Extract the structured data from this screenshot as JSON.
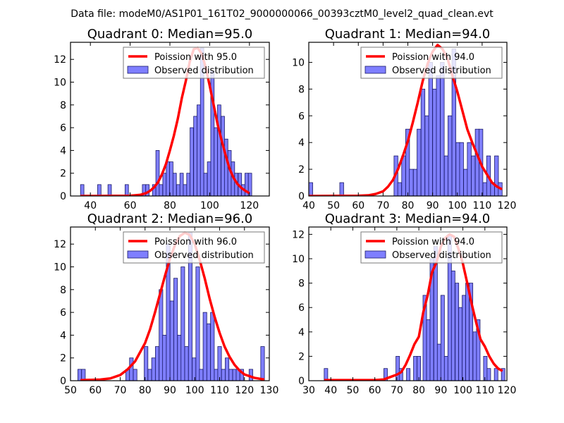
{
  "figure": {
    "suptitle": "Data file: modeM0/AS1P01_161T02_9000000066_00393cztM0_level2_quad_clean.evt"
  },
  "colors": {
    "bar_fill": "#7f7fff",
    "bar_edge": "#1a1a66",
    "poisson_line": "#ff0000",
    "legend_border": "#7a7a7a"
  },
  "chart_data": [
    {
      "type": "bar",
      "title": "Quadrant 0: Median=95.0",
      "xlabel": "",
      "ylabel": "",
      "xlim": [
        30,
        130
      ],
      "ylim": [
        0,
        13.5
      ],
      "xticks": [
        40,
        60,
        80,
        100,
        120
      ],
      "yticks": [
        0,
        2,
        4,
        6,
        8,
        10,
        12
      ],
      "legend": {
        "position": "top-right",
        "entries": [
          "Poission with 95.0",
          "Observed distribution"
        ]
      },
      "bin_width": 1.72,
      "bars": {
        "x": [
          35.9,
          44.5,
          49.7,
          58.3,
          67.0,
          68.7,
          72.1,
          73.8,
          75.5,
          77.3,
          79.0,
          80.7,
          82.4,
          84.2,
          85.9,
          87.6,
          89.3,
          91.0,
          92.8,
          94.5,
          96.2,
          97.9,
          99.7,
          101.4,
          103.1,
          104.8,
          106.6,
          108.3,
          110.0,
          111.7,
          113.4,
          115.2,
          116.9,
          118.6,
          120.3
        ],
        "values": [
          1,
          1,
          1,
          1,
          1,
          1,
          1,
          4,
          1,
          2,
          3,
          3,
          2,
          1,
          2,
          1,
          2,
          6,
          7,
          8,
          13,
          2,
          3,
          11,
          6,
          8,
          7,
          5,
          4,
          3,
          2,
          2,
          1,
          2,
          2
        ]
      },
      "poisson": {
        "name": "Poission with 95.0",
        "x": [
          35,
          60,
          65,
          68,
          70,
          72,
          74,
          76,
          78,
          80,
          82,
          84,
          86,
          88,
          90,
          92,
          94,
          96,
          98,
          100,
          102,
          104,
          106,
          108,
          110,
          112,
          114,
          116,
          118,
          120
        ],
        "values": [
          0,
          0.02,
          0.1,
          0.25,
          0.45,
          0.75,
          1.2,
          1.9,
          2.8,
          4.0,
          5.3,
          6.8,
          8.6,
          10.1,
          11.8,
          12.9,
          13.0,
          12.5,
          11.3,
          9.7,
          8.0,
          6.3,
          4.9,
          3.6,
          2.4,
          1.6,
          1.05,
          0.7,
          0.45,
          0.25
        ]
      }
    },
    {
      "type": "bar",
      "title": "Quadrant 1: Median=94.0",
      "xlabel": "",
      "ylabel": "",
      "xlim": [
        40,
        120
      ],
      "ylim": [
        0,
        11.5
      ],
      "xticks": [
        40,
        50,
        60,
        70,
        80,
        90,
        100,
        110,
        120
      ],
      "yticks": [
        0,
        2,
        4,
        6,
        8,
        10
      ],
      "legend": {
        "position": "top-right",
        "entries": [
          "Poission with 94.0",
          "Observed distribution"
        ]
      },
      "bin_width": 1.56,
      "bars": {
        "x": [
          40.8,
          53.3,
          75.2,
          76.7,
          78.3,
          79.9,
          81.4,
          83.0,
          84.5,
          86.1,
          87.7,
          89.2,
          90.8,
          92.3,
          93.9,
          95.5,
          97.0,
          98.6,
          100.2,
          101.7,
          103.3,
          104.8,
          106.4,
          108.0,
          109.5,
          111.1,
          112.6,
          114.2,
          115.8,
          117.3
        ],
        "values": [
          1,
          1,
          3,
          1,
          3,
          5,
          2,
          2,
          5,
          8,
          6,
          10,
          8,
          9,
          10,
          3,
          6,
          11,
          4,
          4,
          2,
          4,
          3,
          5,
          5,
          1,
          3,
          1,
          3,
          1
        ]
      },
      "poisson": {
        "name": "Poission with 94.0",
        "x": [
          40,
          60,
          64,
          67,
          70,
          72,
          74,
          76,
          78,
          80,
          82,
          84,
          86,
          88,
          90,
          92,
          94,
          96,
          98,
          100,
          102,
          104,
          106,
          108,
          110,
          112,
          114,
          116,
          118
        ],
        "values": [
          0,
          0.02,
          0.05,
          0.15,
          0.35,
          0.7,
          1.2,
          2.0,
          3.0,
          4.1,
          5.5,
          7.0,
          8.6,
          9.9,
          10.8,
          11.3,
          11.0,
          10.3,
          9.0,
          7.8,
          6.4,
          5.0,
          4.0,
          3.1,
          2.2,
          1.6,
          1.0,
          0.7,
          0.5
        ]
      }
    },
    {
      "type": "bar",
      "title": "Quadrant 2: Median=96.0",
      "xlabel": "",
      "ylabel": "",
      "xlim": [
        50,
        130
      ],
      "ylim": [
        0,
        13.5
      ],
      "xticks": [
        50,
        60,
        70,
        80,
        90,
        100,
        110,
        120,
        130
      ],
      "yticks": [
        0,
        2,
        4,
        6,
        8,
        10,
        12
      ],
      "legend": {
        "position": "top-right",
        "entries": [
          "Poission with 96.0",
          "Observed distribution"
        ]
      },
      "bin_width": 1.48,
      "bars": {
        "x": [
          53.7,
          55.2,
          73.0,
          74.5,
          76.0,
          80.4,
          81.9,
          83.4,
          84.9,
          86.4,
          87.8,
          89.3,
          90.8,
          92.3,
          93.8,
          95.2,
          96.7,
          98.2,
          99.7,
          101.2,
          102.6,
          104.1,
          105.6,
          107.1,
          108.6,
          110.0,
          111.5,
          113.0,
          114.5,
          116.0,
          117.4,
          118.9,
          122.6,
          127.3
        ],
        "values": [
          1,
          1,
          1,
          2,
          1,
          3,
          1,
          2,
          3,
          8,
          4,
          12,
          7,
          9,
          4,
          10,
          3,
          13,
          2,
          10,
          1,
          6,
          5,
          6,
          1,
          3,
          1,
          2,
          1,
          1,
          1,
          1,
          1,
          3
        ]
      },
      "poisson": {
        "name": "Poission with 96.0",
        "x": [
          54,
          62,
          66,
          70,
          73,
          76,
          78,
          80,
          82,
          84,
          86,
          88,
          90,
          92,
          94,
          96,
          98,
          100,
          102,
          104,
          106,
          108,
          110,
          112,
          114,
          116,
          118,
          120,
          124,
          128
        ],
        "values": [
          0.05,
          0.1,
          0.2,
          0.5,
          1.0,
          1.7,
          2.5,
          3.3,
          4.5,
          6.0,
          7.6,
          9.2,
          10.7,
          11.9,
          12.7,
          13.0,
          12.8,
          12.0,
          10.6,
          9.0,
          7.2,
          5.6,
          4.2,
          3.0,
          2.1,
          1.4,
          0.9,
          0.55,
          0.25,
          0.1
        ]
      }
    },
    {
      "type": "bar",
      "title": "Quadrant 3: Median=94.0",
      "xlabel": "",
      "ylabel": "",
      "xlim": [
        30,
        120
      ],
      "ylim": [
        0,
        12.6
      ],
      "xticks": [
        30,
        40,
        50,
        60,
        70,
        80,
        90,
        100,
        110,
        120
      ],
      "yticks": [
        0,
        2,
        4,
        6,
        8,
        10,
        12
      ],
      "legend": {
        "position": "top-right",
        "entries": [
          "Poission with 94.0",
          "Observed distribution"
        ]
      },
      "bin_width": 1.62,
      "bars": {
        "x": [
          37.8,
          64.9,
          70.4,
          71.9,
          75.2,
          78.4,
          80.0,
          82.7,
          84.3,
          85.9,
          87.6,
          89.2,
          90.8,
          92.4,
          94.0,
          95.6,
          97.3,
          98.9,
          100.5,
          102.1,
          103.7,
          105.4,
          107.0,
          110.2,
          111.8,
          115.1,
          118.3
        ],
        "values": [
          1,
          1,
          2,
          1,
          1,
          2,
          2,
          7,
          5,
          10,
          11,
          3,
          7,
          2,
          12,
          9,
          8,
          6,
          7,
          8,
          8,
          4,
          5,
          2,
          1,
          1,
          1
        ]
      },
      "poisson": {
        "name": "Poission with 94.0",
        "x": [
          37,
          60,
          64,
          67,
          70,
          72,
          74,
          76,
          78,
          80,
          82,
          84,
          86,
          88,
          90,
          92,
          94,
          96,
          98,
          100,
          102,
          104,
          106,
          108,
          110,
          112,
          114,
          116,
          118
        ],
        "values": [
          0.05,
          0.05,
          0.1,
          0.3,
          0.5,
          0.7,
          1.3,
          2.1,
          3.0,
          3.6,
          5.6,
          7.0,
          8.9,
          9.7,
          11.0,
          11.7,
          12.0,
          11.8,
          10.8,
          9.6,
          8.0,
          6.3,
          4.8,
          3.4,
          2.8,
          2.0,
          1.4,
          1.0,
          0.8
        ]
      }
    }
  ]
}
